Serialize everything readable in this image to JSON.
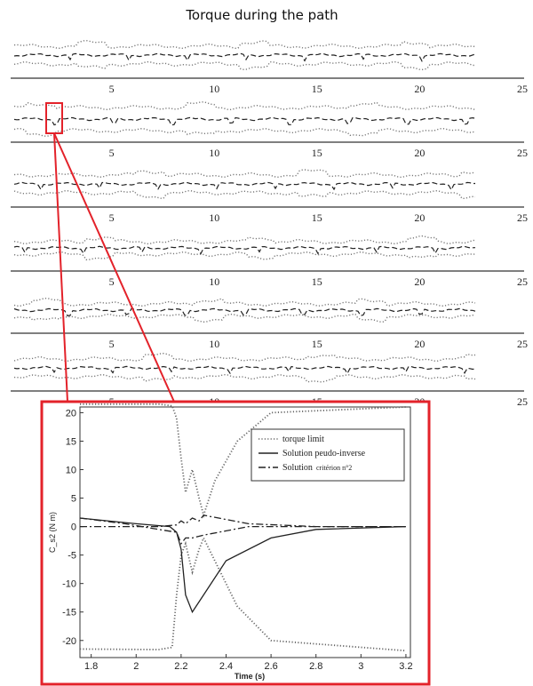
{
  "chart_data": [
    {
      "type": "line",
      "title": "Torque during the path",
      "panels": 6,
      "x_ticks": [
        5,
        10,
        15,
        20,
        25
      ],
      "xlim": [
        0,
        25
      ],
      "series": [
        {
          "style": "dotted",
          "role": "upper limit"
        },
        {
          "style": "dotted",
          "role": "lower limit"
        },
        {
          "style": "dashed"
        }
      ]
    },
    {
      "type": "line",
      "xlim": [
        1.75,
        3.22
      ],
      "ylim": [
        -23,
        21
      ],
      "x_ticks": [
        "1.8",
        "2",
        "2.2",
        "2.4",
        "2.6",
        "2.8",
        "3",
        "3.2"
      ],
      "y_ticks": [
        "20",
        "15",
        "10",
        "5",
        "0",
        "-5",
        "-10",
        "-15",
        "-20"
      ],
      "xlabel": "Time (s)",
      "ylabel": "C_s2 (N m)",
      "legend": {
        "placement": "top-right",
        "entries": [
          {
            "text": "torque limit",
            "sub": "",
            "style": "dotted"
          },
          {
            "text": "Solution peudo-inverse",
            "sub": "",
            "style": "solid"
          },
          {
            "text": "Solution",
            "sub": "critérion n°2",
            "style": "dashdot"
          }
        ]
      },
      "series": [
        {
          "style": "dotted",
          "x": [
            1.75,
            2.1,
            2.16,
            2.18,
            2.2,
            2.22,
            2.25,
            2.28,
            2.3,
            2.35,
            2.45,
            2.6,
            3.2
          ],
          "y": [
            -21.5,
            -21.6,
            -21.2,
            -12,
            -5,
            -3,
            -8,
            -4,
            -2,
            -6,
            -14,
            -20,
            -21.8
          ]
        },
        {
          "style": "dotted",
          "x": [
            1.75,
            2.1,
            2.16,
            2.18,
            2.2,
            2.22,
            2.25,
            2.28,
            2.3,
            2.35,
            2.45,
            2.6,
            3.2
          ],
          "y": [
            21.5,
            21.5,
            21.2,
            19,
            12,
            6,
            10,
            5,
            2,
            8,
            15,
            20,
            21
          ]
        },
        {
          "style": "solid",
          "x": [
            1.75,
            2.0,
            2.15,
            2.18,
            2.2,
            2.22,
            2.25,
            2.3,
            2.4,
            2.6,
            2.8,
            3.2
          ],
          "y": [
            1.5,
            0.5,
            0,
            -1,
            -4,
            -12,
            -15,
            -12,
            -6,
            -2,
            -0.5,
            0
          ]
        },
        {
          "style": "dashdot",
          "x": [
            1.75,
            1.95,
            2.1,
            2.18,
            2.2,
            2.22,
            2.25,
            2.3,
            2.5,
            2.8,
            3.2
          ],
          "y": [
            1.5,
            0.5,
            -0.5,
            -1,
            -3,
            -2,
            -2,
            -1.5,
            0,
            0,
            0
          ]
        },
        {
          "style": "dashdot",
          "x": [
            1.75,
            2.1,
            2.18,
            2.2,
            2.22,
            2.25,
            2.28,
            2.3,
            2.5,
            2.8,
            3.2
          ],
          "y": [
            0,
            0,
            0.3,
            1,
            0.5,
            1.5,
            1,
            2,
            0.5,
            0,
            0
          ]
        }
      ]
    }
  ],
  "colors": {
    "highlight": "#e3222a",
    "line": "#222222",
    "limit": "#666666"
  }
}
